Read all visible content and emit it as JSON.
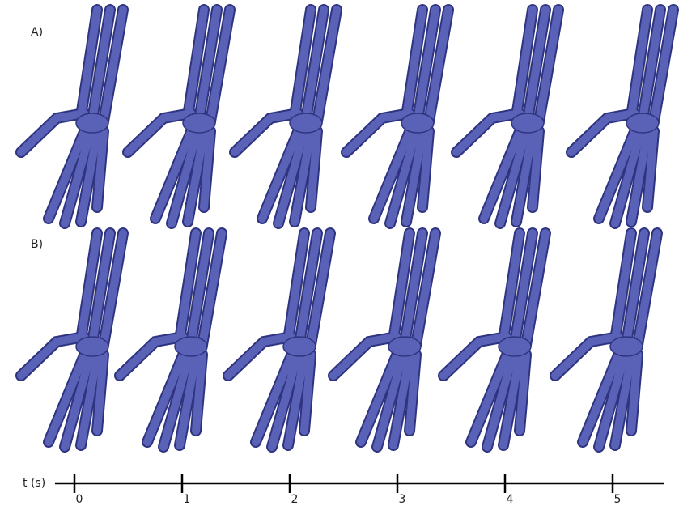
{
  "panels": [
    {
      "label": "A)"
    },
    {
      "label": "B)"
    }
  ],
  "timeline": {
    "label": "t (s)",
    "ticks": [
      0,
      1,
      2,
      3,
      4,
      5
    ]
  }
}
